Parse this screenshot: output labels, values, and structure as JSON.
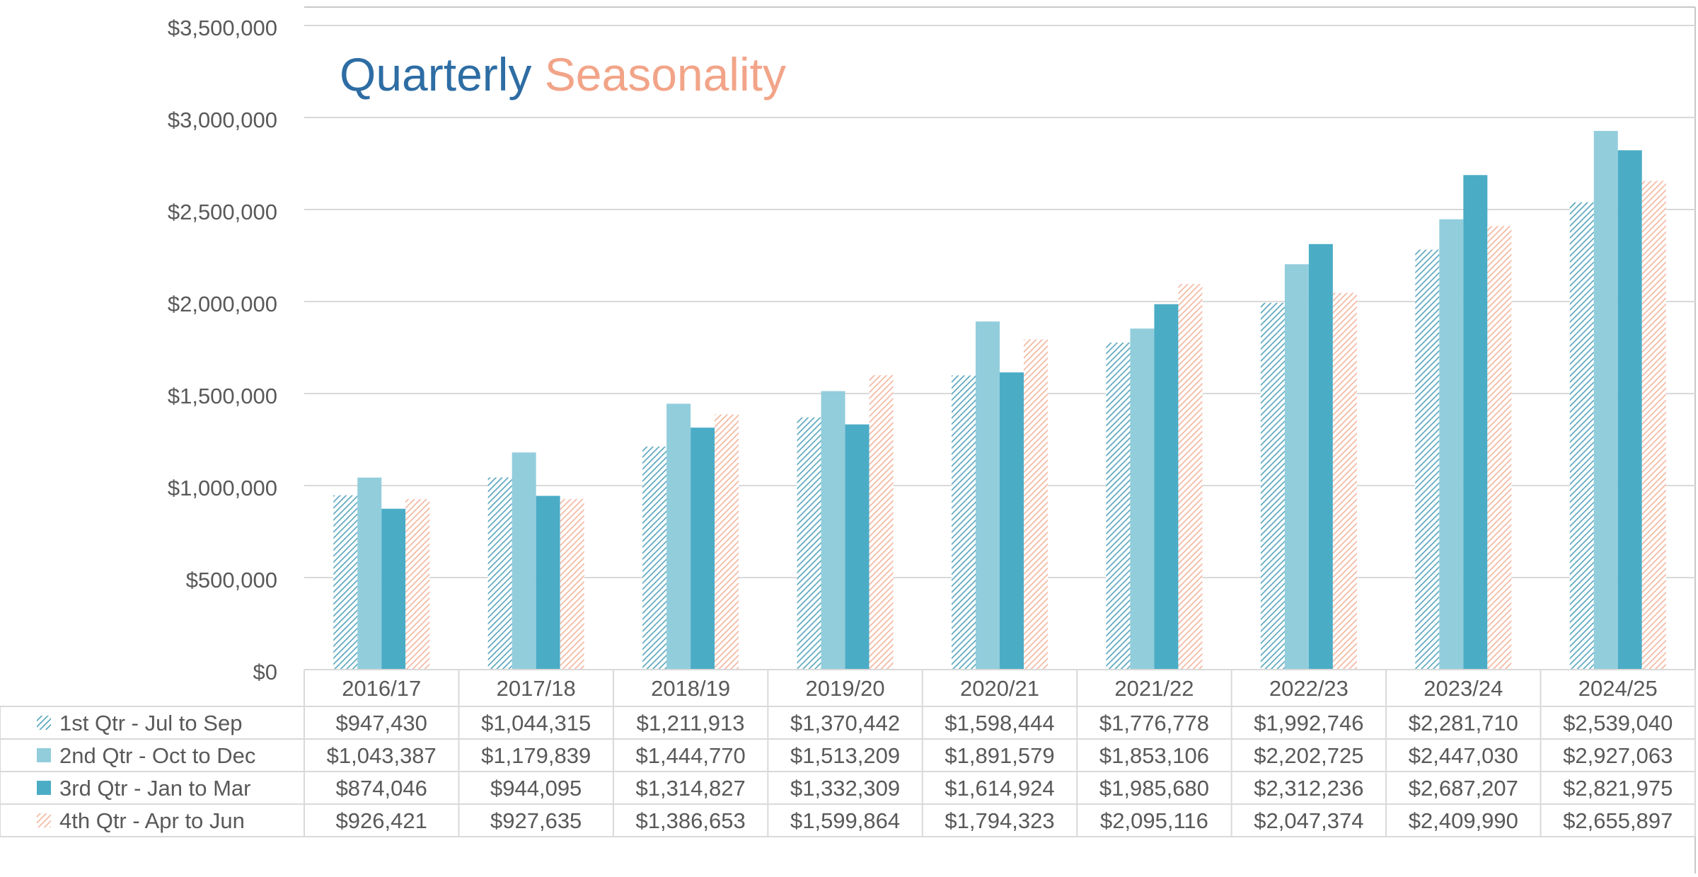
{
  "chart_data": {
    "type": "bar",
    "title_parts": [
      {
        "text": "Quarterly",
        "color": "#2E6DA4"
      },
      {
        "text": "Seasonality",
        "color": "#F2A488"
      }
    ],
    "categories": [
      "2016/17",
      "2017/18",
      "2018/19",
      "2019/20",
      "2020/21",
      "2021/22",
      "2022/23",
      "2023/24",
      "2024/25"
    ],
    "ylim": [
      0,
      3500000
    ],
    "yticks": [
      0,
      500000,
      1000000,
      1500000,
      2000000,
      2500000,
      3000000,
      3500000
    ],
    "ytick_labels": [
      "$0",
      "$500,000",
      "$1,000,000",
      "$1,500,000",
      "$2,000,000",
      "$2,500,000",
      "$3,000,000",
      "$3,500,000"
    ],
    "grid": true,
    "legend_placement": "data-table-rows",
    "series": [
      {
        "name": "1st Qtr - Jul to Sep",
        "color": "#5BA8BE",
        "pattern": "hatch",
        "values": [
          947430,
          1044315,
          1211913,
          1370442,
          1598444,
          1776778,
          1992746,
          2281710,
          2539040
        ],
        "labels": [
          "$947,430",
          "$1,044,315",
          "$1,211,913",
          "$1,370,442",
          "$1,598,444",
          "$1,776,778",
          "$1,992,746",
          "$2,281,710",
          "$2,539,040"
        ]
      },
      {
        "name": "2nd Qtr - Oct to Dec",
        "color": "#92CDDC",
        "pattern": "solid",
        "values": [
          1043387,
          1179839,
          1444770,
          1513209,
          1891579,
          1853106,
          2202725,
          2447030,
          2927063
        ],
        "labels": [
          "$1,043,387",
          "$1,179,839",
          "$1,444,770",
          "$1,513,209",
          "$1,891,579",
          "$1,853,106",
          "$2,202,725",
          "$2,447,030",
          "$2,927,063"
        ]
      },
      {
        "name": "3rd Qtr - Jan to Mar",
        "color": "#4BACC6",
        "pattern": "solid",
        "values": [
          874046,
          944095,
          1314827,
          1332309,
          1614924,
          1985680,
          2312236,
          2687207,
          2821975
        ],
        "labels": [
          "$874,046",
          "$944,095",
          "$1,314,827",
          "$1,332,309",
          "$1,614,924",
          "$1,985,680",
          "$2,312,236",
          "$2,687,207",
          "$2,821,975"
        ]
      },
      {
        "name": "4th Qtr - Apr to Jun",
        "color": "#F2B8A2",
        "pattern": "hatch",
        "values": [
          926421,
          927635,
          1386653,
          1599864,
          1794323,
          2095116,
          2047374,
          2409990,
          2655897
        ],
        "labels": [
          "$926,421",
          "$927,635",
          "$1,386,653",
          "$1,599,864",
          "$1,794,323",
          "$2,095,116",
          "$2,047,374",
          "$2,409,990",
          "$2,655,897"
        ]
      }
    ]
  }
}
